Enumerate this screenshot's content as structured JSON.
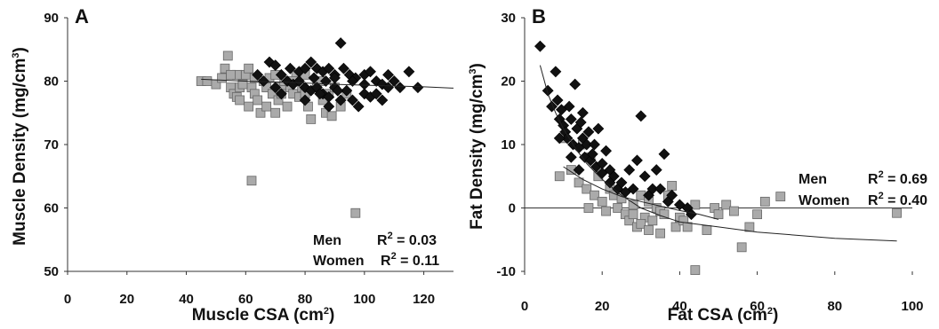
{
  "chart_data": [
    {
      "type": "scatter",
      "panel_label": "A",
      "xlabel": "Muscle CSA (cm",
      "xlabel_sup": "2",
      "xlabel_end": ")",
      "ylabel": "Muscle Density (mg/cm",
      "ylabel_sup": "3",
      "ylabel_end": ")",
      "xlim": [
        0,
        130
      ],
      "ylim": [
        50,
        90
      ],
      "xticks": [
        "0",
        "20",
        "40",
        "60",
        "80",
        "100",
        "120"
      ],
      "yticks": [
        "50",
        "60",
        "70",
        "80",
        "90"
      ],
      "legend": [
        {
          "label": "Men",
          "r2_label": "R",
          "r2_sup": "2",
          "r2_value": " = 0.03"
        },
        {
          "label": "Women",
          "r2_label": "R",
          "r2_sup": "2",
          "r2_value": " = 0.11"
        }
      ],
      "fit_line": [
        [
          45,
          80.3
        ],
        [
          60,
          80.0
        ],
        [
          75,
          79.8
        ],
        [
          90,
          79.5
        ],
        [
          105,
          79.3
        ],
        [
          120,
          79.1
        ],
        [
          130,
          78.9
        ]
      ],
      "series": [
        {
          "marker": "diamond",
          "color": "#111111",
          "points": [
            [
              92,
              86
            ],
            [
              68,
              83
            ],
            [
              70,
              82.5
            ],
            [
              75,
              82
            ],
            [
              78,
              81.5
            ],
            [
              80,
              82
            ],
            [
              82,
              83
            ],
            [
              84,
              82
            ],
            [
              86,
              81.5
            ],
            [
              88,
              82
            ],
            [
              90,
              81
            ],
            [
              93,
              82
            ],
            [
              95,
              81
            ],
            [
              97,
              80.5
            ],
            [
              100,
              81
            ],
            [
              102,
              81.5
            ],
            [
              104,
              80
            ],
            [
              106,
              79.5
            ],
            [
              108,
              79
            ],
            [
              110,
              80
            ],
            [
              112,
              79
            ],
            [
              115,
              81.5
            ],
            [
              118,
              79
            ],
            [
              72,
              81
            ],
            [
              74,
              80
            ],
            [
              76,
              79.5
            ],
            [
              78,
              80
            ],
            [
              80,
              79
            ],
            [
              82,
              78.5
            ],
            [
              84,
              79
            ],
            [
              86,
              78
            ],
            [
              88,
              77.5
            ],
            [
              90,
              79
            ],
            [
              92,
              77
            ],
            [
              94,
              78.5
            ],
            [
              96,
              77
            ],
            [
              98,
              76
            ],
            [
              100,
              78
            ],
            [
              102,
              77.5
            ],
            [
              104,
              78
            ],
            [
              106,
              77
            ],
            [
              70,
              79
            ],
            [
              72,
              78
            ],
            [
              80,
              77
            ],
            [
              85,
              78
            ],
            [
              88,
              76
            ],
            [
              90,
              80.5
            ],
            [
              66,
              80
            ],
            [
              64,
              81
            ],
            [
              96,
              80
            ],
            [
              100,
              79.5
            ],
            [
              108,
              81
            ],
            [
              83,
              80.5
            ],
            [
              87,
              80
            ],
            [
              91,
              78.5
            ]
          ]
        },
        {
          "marker": "square",
          "color": "#aaaaaa",
          "points": [
            [
              45,
              80
            ],
            [
              47,
              80
            ],
            [
              50,
              79.5
            ],
            [
              52,
              80.5
            ],
            [
              53,
              82
            ],
            [
              54,
              84
            ],
            [
              55,
              79
            ],
            [
              56,
              78
            ],
            [
              57,
              77.5
            ],
            [
              58,
              79
            ],
            [
              59,
              80
            ],
            [
              60,
              81
            ],
            [
              61,
              82
            ],
            [
              62,
              79
            ],
            [
              63,
              78
            ],
            [
              64,
              77
            ],
            [
              65,
              75
            ],
            [
              66,
              80
            ],
            [
              67,
              79
            ],
            [
              68,
              80.5
            ],
            [
              69,
              78
            ],
            [
              70,
              81
            ],
            [
              71,
              77
            ],
            [
              72,
              79
            ],
            [
              73,
              80
            ],
            [
              74,
              76
            ],
            [
              75,
              79
            ],
            [
              76,
              78
            ],
            [
              77,
              81
            ],
            [
              78,
              77.5
            ],
            [
              79,
              79
            ],
            [
              80,
              78
            ],
            [
              81,
              76
            ],
            [
              82,
              74
            ],
            [
              84,
              79
            ],
            [
              85,
              80
            ],
            [
              86,
              77
            ],
            [
              87,
              75
            ],
            [
              88,
              78
            ],
            [
              89,
              74.5
            ],
            [
              90,
              79
            ],
            [
              92,
              76
            ],
            [
              94,
              78
            ],
            [
              62,
              64.3
            ],
            [
              97,
              59.2
            ],
            [
              57,
              81
            ],
            [
              59,
              79.5
            ],
            [
              63,
              80.5
            ],
            [
              67,
              76
            ],
            [
              72,
              78
            ],
            [
              76,
              80
            ],
            [
              80,
              81
            ],
            [
              55,
              81
            ],
            [
              58,
              77
            ],
            [
              61,
              76
            ],
            [
              70,
              75
            ]
          ]
        }
      ]
    },
    {
      "type": "scatter",
      "panel_label": "B",
      "xlabel": "Fat CSA (cm",
      "xlabel_sup": "2",
      "xlabel_end": ")",
      "ylabel": "Fat Density (mg/cm",
      "ylabel_sup": "3",
      "ylabel_end": ")",
      "xlim": [
        0,
        100
      ],
      "ylim": [
        -10,
        30
      ],
      "xticks": [
        "0",
        "20",
        "40",
        "60",
        "80",
        "100"
      ],
      "yticks": [
        "-10",
        "0",
        "10",
        "20",
        "30"
      ],
      "legend": [
        {
          "label": "Men",
          "r2_label": "R",
          "r2_sup": "2",
          "r2_value": " = 0.69"
        },
        {
          "label": "Women",
          "r2_label": "R",
          "r2_sup": "2",
          "r2_value": " = 0.40"
        }
      ],
      "fit_line": [
        [
          4,
          22.5
        ],
        [
          6,
          18
        ],
        [
          8,
          15
        ],
        [
          10,
          12.5
        ],
        [
          13,
          9.5
        ],
        [
          16,
          7
        ],
        [
          20,
          4.5
        ],
        [
          25,
          2
        ],
        [
          30,
          0
        ],
        [
          35,
          -1.2
        ],
        [
          40,
          -2.2
        ],
        [
          50,
          -3
        ],
        [
          60,
          -3.8
        ],
        [
          70,
          -4.3
        ],
        [
          80,
          -4.8
        ],
        [
          96,
          -5.2
        ]
      ],
      "fit_line_2": [
        [
          10,
          6.5
        ],
        [
          15,
          4.5
        ],
        [
          20,
          3
        ],
        [
          25,
          1.8
        ],
        [
          30,
          1
        ],
        [
          35,
          0.3
        ],
        [
          40,
          -0.4
        ],
        [
          45,
          -1
        ],
        [
          50,
          -1.8
        ]
      ],
      "series": [
        {
          "marker": "diamond",
          "color": "#111111",
          "points": [
            [
              4,
              25.5
            ],
            [
              6,
              18.5
            ],
            [
              7,
              16
            ],
            [
              8,
              21.5
            ],
            [
              8.5,
              17
            ],
            [
              9,
              14
            ],
            [
              9.5,
              15.5
            ],
            [
              10,
              13
            ],
            [
              10.5,
              12
            ],
            [
              11,
              11
            ],
            [
              11.5,
              16
            ],
            [
              12,
              14
            ],
            [
              12.5,
              10
            ],
            [
              13,
              19.5
            ],
            [
              13.5,
              12.5
            ],
            [
              14,
              9.5
            ],
            [
              14.5,
              13.5
            ],
            [
              15,
              11
            ],
            [
              15.5,
              8
            ],
            [
              16,
              10
            ],
            [
              16.5,
              12
            ],
            [
              17,
              7.5
            ],
            [
              17.5,
              8.5
            ],
            [
              18,
              10
            ],
            [
              18.5,
              6.5
            ],
            [
              19,
              12.5
            ],
            [
              20,
              7
            ],
            [
              21,
              9
            ],
            [
              22,
              6
            ],
            [
              23,
              5
            ],
            [
              24,
              3
            ],
            [
              25,
              4
            ],
            [
              26,
              2.5
            ],
            [
              27,
              6
            ],
            [
              28,
              3
            ],
            [
              29,
              7.5
            ],
            [
              30,
              14.5
            ],
            [
              31,
              5
            ],
            [
              32,
              2
            ],
            [
              33,
              3
            ],
            [
              34,
              6
            ],
            [
              35,
              3
            ],
            [
              36,
              8.5
            ],
            [
              37,
              1
            ],
            [
              38,
              2
            ],
            [
              40,
              0.5
            ],
            [
              42,
              0
            ],
            [
              43,
              -1
            ],
            [
              12,
              8
            ],
            [
              14,
              6
            ],
            [
              20,
              5.5
            ],
            [
              15,
              15
            ],
            [
              9,
              11
            ],
            [
              22,
              4
            ]
          ]
        },
        {
          "marker": "square",
          "color": "#aaaaaa",
          "points": [
            [
              9,
              5
            ],
            [
              10,
              11
            ],
            [
              12,
              6
            ],
            [
              14,
              4
            ],
            [
              15,
              10
            ],
            [
              16,
              3
            ],
            [
              16.5,
              0
            ],
            [
              17,
              8
            ],
            [
              18,
              2
            ],
            [
              19,
              5
            ],
            [
              20,
              1
            ],
            [
              21,
              -0.5
            ],
            [
              22,
              3
            ],
            [
              23,
              2
            ],
            [
              24,
              0
            ],
            [
              25,
              1.5
            ],
            [
              26,
              -1
            ],
            [
              27,
              -2
            ],
            [
              28,
              0.5
            ],
            [
              29,
              -3
            ],
            [
              30,
              2
            ],
            [
              31,
              -1.5
            ],
            [
              32,
              1
            ],
            [
              33,
              -2
            ],
            [
              34,
              0
            ],
            [
              35,
              -0.5
            ],
            [
              36,
              -1
            ],
            [
              37,
              2
            ],
            [
              38,
              3.5
            ],
            [
              39,
              -3
            ],
            [
              40,
              -1.5
            ],
            [
              41,
              -2
            ],
            [
              42,
              -3
            ],
            [
              44,
              -9.8
            ],
            [
              47,
              -3.5
            ],
            [
              49,
              0
            ],
            [
              50,
              -1
            ],
            [
              52,
              0.5
            ],
            [
              54,
              -0.5
            ],
            [
              56,
              -6.2
            ],
            [
              58,
              -3
            ],
            [
              60,
              -1
            ],
            [
              62,
              1
            ],
            [
              66,
              1.8
            ],
            [
              96,
              -0.8
            ],
            [
              44,
              0.5
            ],
            [
              35,
              -4
            ],
            [
              30,
              -2.5
            ],
            [
              28,
              -1
            ],
            [
              32,
              -3.5
            ]
          ]
        }
      ]
    }
  ]
}
